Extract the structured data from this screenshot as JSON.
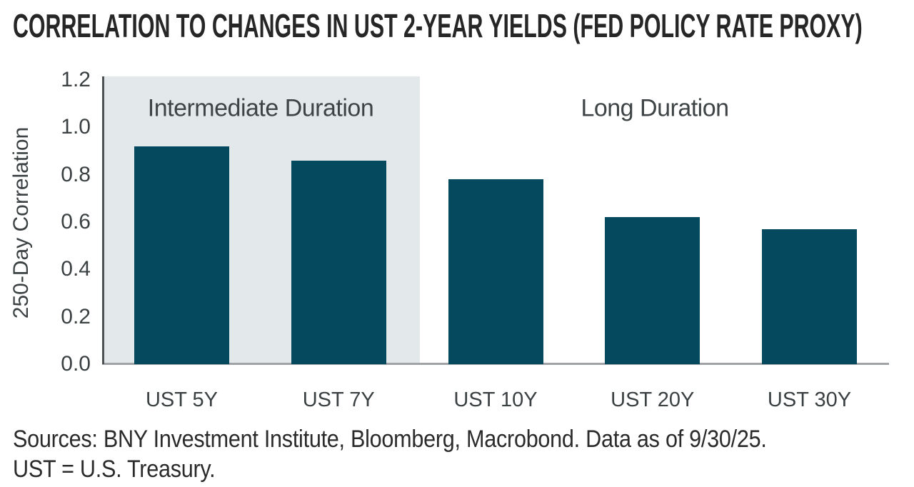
{
  "title": "CORRELATION TO CHANGES IN UST 2-YEAR YIELDS (FED POLICY RATE PROXY)",
  "chart_data": {
    "type": "bar",
    "categories": [
      "UST 5Y",
      "UST 7Y",
      "UST 10Y",
      "UST 20Y",
      "UST 30Y"
    ],
    "values": [
      0.92,
      0.86,
      0.78,
      0.62,
      0.57
    ],
    "title": "CORRELATION TO CHANGES IN UST 2-YEAR YIELDS (FED POLICY RATE PROXY)",
    "xlabel": "",
    "ylabel": "250-Day Correlation",
    "ylim": [
      0.0,
      1.2
    ],
    "y_ticks": [
      "0.0",
      "0.2",
      "0.4",
      "0.6",
      "0.8",
      "1.0",
      "1.2"
    ],
    "grid": false,
    "legend": "none",
    "bar_color": "#05495e",
    "regions": [
      {
        "label": "Intermediate Duration",
        "categories": [
          "UST 5Y",
          "UST 7Y"
        ],
        "shaded": true,
        "shade_color": "#e3e8ea"
      },
      {
        "label": "Long Duration",
        "categories": [
          "UST 10Y",
          "UST 20Y",
          "UST 30Y"
        ],
        "shaded": false,
        "shade_color": ""
      }
    ]
  },
  "footer": {
    "line1": "Sources: BNY Investment Institute, Bloomberg, Macrobond. Data as of 9/30/25.",
    "line2": "UST = U.S. Treasury."
  },
  "colors": {
    "bar": "#05495e",
    "shade": "#e3e8ea",
    "title_text": "#262626",
    "axis_text": "#3b4143",
    "region_text": "#3e4446",
    "y_axis_line": "#4d5255",
    "x_axis_line": "#a0a3a5",
    "background": "#ffffff"
  }
}
